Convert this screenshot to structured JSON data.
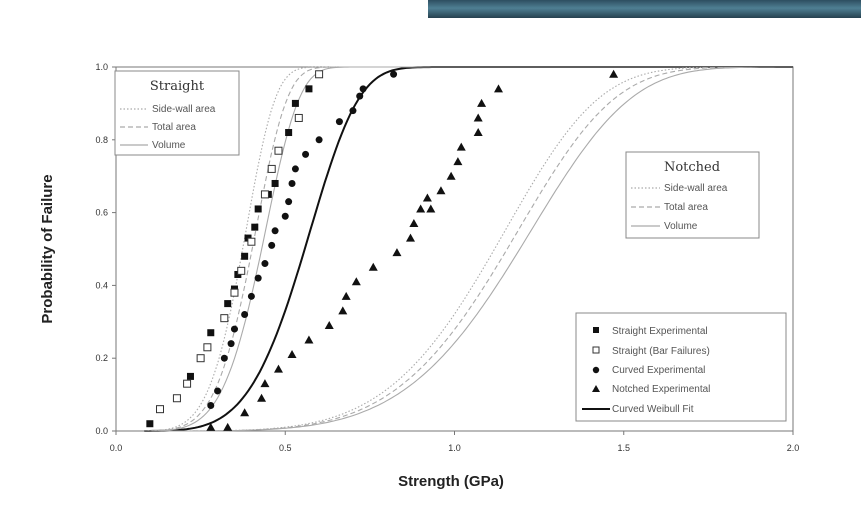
{
  "chart_data": {
    "type": "scatter",
    "xlabel": "Strength (GPa)",
    "ylabel": "Probability of Failure",
    "xlim": [
      0.0,
      2.0
    ],
    "ylim": [
      0.0,
      1.0
    ],
    "x_ticks": [
      "0.0",
      "0.5",
      "1.0",
      "1.5",
      "2.0"
    ],
    "y_ticks": [
      "0.0",
      "0.2",
      "0.4",
      "0.6",
      "0.8",
      "1.0"
    ],
    "grid": false,
    "legend_straight": {
      "title": "Straight",
      "placement": "top-left",
      "entries": [
        "Side-wall area",
        "Total area",
        "Volume"
      ]
    },
    "legend_notched": {
      "title": "Notched",
      "placement": "middle-right",
      "entries": [
        "Side-wall area",
        "Total area",
        "Volume"
      ]
    },
    "legend_series": {
      "placement": "bottom-right",
      "entries": [
        "Straight Experimental",
        "Straight (Bar Failures)",
        "Curved Experimental",
        "Notched Experimental",
        "Curved Weibull Fit"
      ]
    },
    "series": [
      {
        "name": "Straight Experimental",
        "marker": "filled-square",
        "points": [
          [
            0.1,
            0.02
          ],
          [
            0.22,
            0.15
          ],
          [
            0.28,
            0.27
          ],
          [
            0.33,
            0.35
          ],
          [
            0.35,
            0.39
          ],
          [
            0.36,
            0.43
          ],
          [
            0.38,
            0.48
          ],
          [
            0.39,
            0.53
          ],
          [
            0.41,
            0.56
          ],
          [
            0.42,
            0.61
          ],
          [
            0.45,
            0.65
          ],
          [
            0.47,
            0.68
          ],
          [
            0.51,
            0.82
          ],
          [
            0.53,
            0.9
          ],
          [
            0.57,
            0.94
          ]
        ]
      },
      {
        "name": "Straight (Bar Failures)",
        "marker": "open-square",
        "points": [
          [
            0.13,
            0.06
          ],
          [
            0.18,
            0.09
          ],
          [
            0.21,
            0.13
          ],
          [
            0.25,
            0.2
          ],
          [
            0.27,
            0.23
          ],
          [
            0.32,
            0.31
          ],
          [
            0.35,
            0.38
          ],
          [
            0.37,
            0.44
          ],
          [
            0.4,
            0.52
          ],
          [
            0.44,
            0.65
          ],
          [
            0.46,
            0.72
          ],
          [
            0.48,
            0.77
          ],
          [
            0.54,
            0.86
          ],
          [
            0.6,
            0.98
          ]
        ]
      },
      {
        "name": "Curved Experimental",
        "marker": "filled-circle",
        "points": [
          [
            0.28,
            0.07
          ],
          [
            0.3,
            0.11
          ],
          [
            0.32,
            0.2
          ],
          [
            0.34,
            0.24
          ],
          [
            0.35,
            0.28
          ],
          [
            0.38,
            0.32
          ],
          [
            0.4,
            0.37
          ],
          [
            0.42,
            0.42
          ],
          [
            0.44,
            0.46
          ],
          [
            0.46,
            0.51
          ],
          [
            0.47,
            0.55
          ],
          [
            0.5,
            0.59
          ],
          [
            0.51,
            0.63
          ],
          [
            0.52,
            0.68
          ],
          [
            0.53,
            0.72
          ],
          [
            0.56,
            0.76
          ],
          [
            0.6,
            0.8
          ],
          [
            0.66,
            0.85
          ],
          [
            0.7,
            0.88
          ],
          [
            0.72,
            0.92
          ],
          [
            0.73,
            0.94
          ],
          [
            0.82,
            0.98
          ]
        ]
      },
      {
        "name": "Notched Experimental",
        "marker": "filled-triangle",
        "points": [
          [
            0.28,
            0.01
          ],
          [
            0.33,
            0.01
          ],
          [
            0.38,
            0.05
          ],
          [
            0.43,
            0.09
          ],
          [
            0.44,
            0.13
          ],
          [
            0.48,
            0.17
          ],
          [
            0.52,
            0.21
          ],
          [
            0.57,
            0.25
          ],
          [
            0.63,
            0.29
          ],
          [
            0.67,
            0.33
          ],
          [
            0.68,
            0.37
          ],
          [
            0.71,
            0.41
          ],
          [
            0.76,
            0.45
          ],
          [
            0.83,
            0.49
          ],
          [
            0.87,
            0.53
          ],
          [
            0.88,
            0.57
          ],
          [
            0.9,
            0.61
          ],
          [
            0.92,
            0.64
          ],
          [
            0.93,
            0.61
          ],
          [
            0.96,
            0.66
          ],
          [
            0.99,
            0.7
          ],
          [
            1.01,
            0.74
          ],
          [
            1.02,
            0.78
          ],
          [
            1.07,
            0.82
          ],
          [
            1.07,
            0.86
          ],
          [
            1.08,
            0.9
          ],
          [
            1.13,
            0.94
          ],
          [
            1.47,
            0.98
          ]
        ]
      }
    ],
    "curves": [
      {
        "name": "Curved Weibull Fit",
        "group": "fit",
        "style": "solid-thick",
        "scale": 0.6,
        "shape": 5.0
      },
      {
        "name": "Side-wall area",
        "group": "Straight",
        "style": "dotted",
        "scale": 0.4,
        "shape": 5.5
      },
      {
        "name": "Total area",
        "group": "Straight",
        "style": "dashed",
        "scale": 0.43,
        "shape": 5.5
      },
      {
        "name": "Volume",
        "group": "Straight",
        "style": "solid-thin",
        "scale": 0.46,
        "shape": 5.5
      },
      {
        "name": "Side-wall area",
        "group": "Notched",
        "style": "dotted",
        "scale": 1.2,
        "shape": 5.2
      },
      {
        "name": "Total area",
        "group": "Notched",
        "style": "dashed",
        "scale": 1.24,
        "shape": 5.2
      },
      {
        "name": "Volume",
        "group": "Notched",
        "style": "solid-thin",
        "scale": 1.28,
        "shape": 5.2
      }
    ],
    "colors": {
      "markers": "#111111",
      "fit_line": "#111111",
      "model_lines": "#aaaaaa",
      "axis": "#777777"
    }
  }
}
